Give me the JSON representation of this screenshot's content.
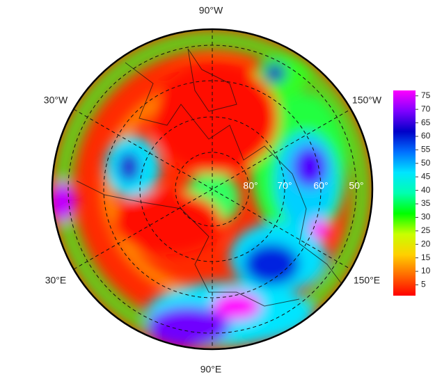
{
  "map": {
    "longitude_labels": [
      "90°W",
      "30°W",
      "150°W",
      "30°E",
      "150°E",
      "90°E"
    ],
    "latitude_labels": [
      "80°",
      "70°",
      "60°",
      "50°"
    ],
    "colorbar": {
      "colors": [
        "#ff0000",
        "#ff6a00",
        "#ffd000",
        "#c8ff00",
        "#00ff00",
        "#00ffb0",
        "#00e5ff",
        "#0070ff",
        "#0000c8",
        "#8000ff",
        "#ff00ff"
      ],
      "lim": [
        1,
        77
      ],
      "ticks": [
        5,
        10,
        15,
        20,
        25,
        30,
        35,
        40,
        45,
        50,
        55,
        60,
        65,
        70,
        75
      ]
    }
  }
}
